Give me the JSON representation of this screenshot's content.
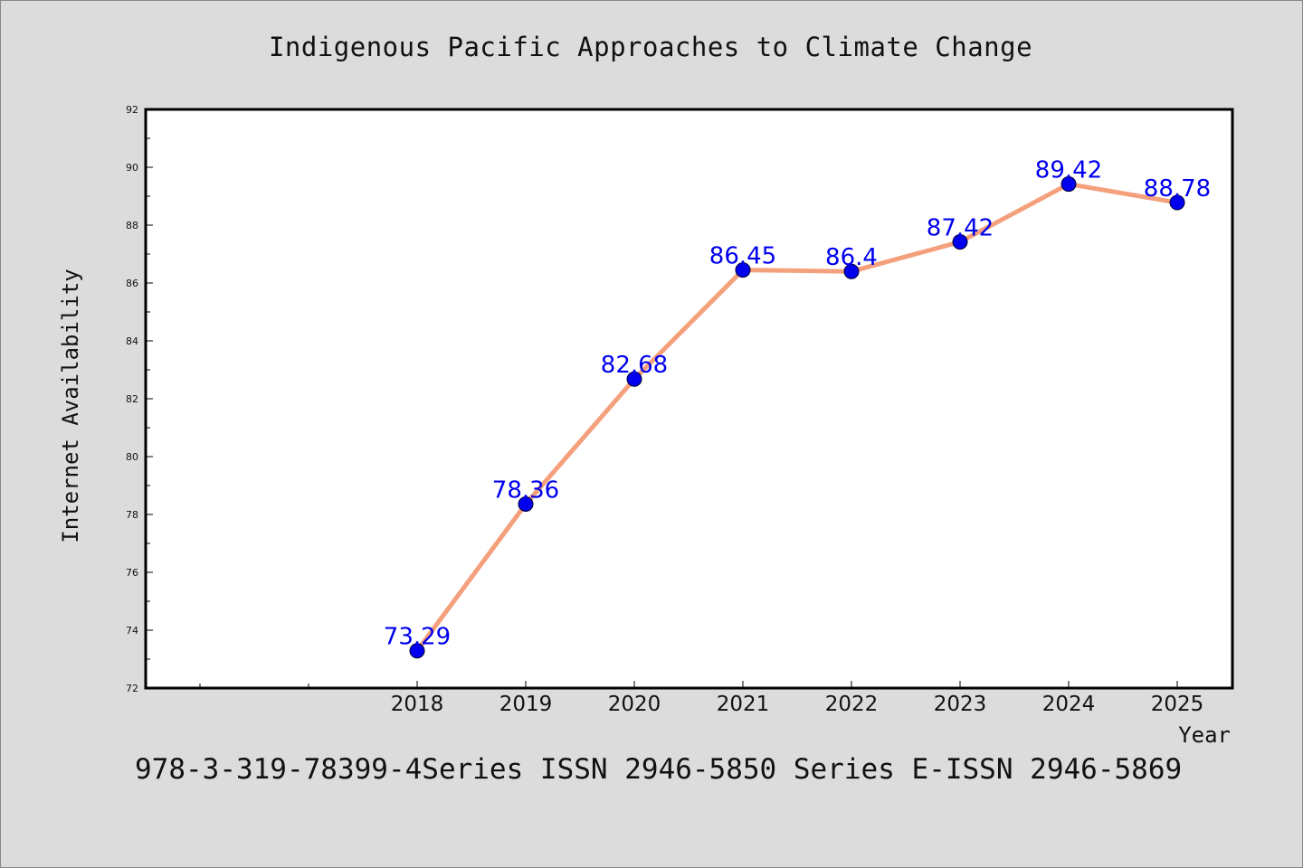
{
  "title": "Indigenous Pacific Approaches to Climate Change",
  "footer": "978-3-319-78399-4Series ISSN 2946-5850 Series E-ISSN 2946-5869",
  "chart_data": {
    "type": "line",
    "title": "Indigenous Pacific Approaches to Climate Change",
    "xlabel": "Year",
    "ylabel": "Internet Availability",
    "x": [
      "2018",
      "2019",
      "2020",
      "2021",
      "2022",
      "2023",
      "2024",
      "2025"
    ],
    "series": [
      {
        "values": [
          73.29,
          78.36,
          82.68,
          86.45,
          86.4,
          87.42,
          89.42,
          88.78
        ],
        "labels": [
          "73.29",
          "78.36",
          "82.68",
          "86.45",
          "86.4",
          "87.42",
          "89.42",
          "88.78"
        ]
      }
    ],
    "ylim": [
      72,
      92
    ],
    "yticks": [
      "72",
      "74",
      "76",
      "78",
      "80",
      "82",
      "84",
      "86",
      "88",
      "90",
      "92"
    ],
    "grid": false,
    "legend": "none",
    "colors": {
      "line": "#f4a07c",
      "marker": "#0000ee",
      "label": "#0000ee",
      "background": "#dcdcdc",
      "plot_background": "#ffffff"
    }
  }
}
